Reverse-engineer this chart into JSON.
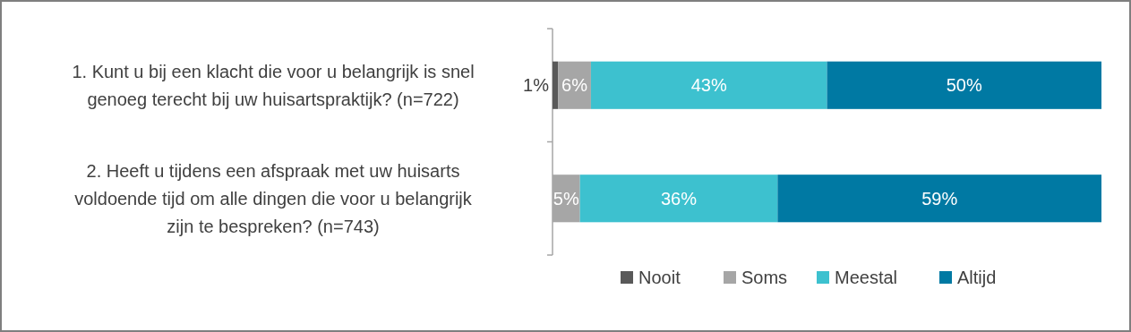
{
  "chart_data": {
    "type": "bar",
    "orientation": "horizontal",
    "stacked": true,
    "categories": [
      "1. Kunt u bij een klacht die voor u belangrijk is snel genoeg terecht bij uw huisartspraktijk? (n=722)",
      "2. Heeft u tijdens een afspraak met uw huisarts voldoende tijd om alle dingen die voor u belangrijk zijn te bespreken? (n=743)"
    ],
    "series": [
      {
        "name": "Nooit",
        "color": "#595959",
        "values": [
          1,
          0
        ],
        "value_labels": [
          "1%",
          null
        ]
      },
      {
        "name": "Soms",
        "color": "#a6a6a6",
        "values": [
          6,
          5
        ],
        "value_labels": [
          "6%",
          "5%"
        ]
      },
      {
        "name": "Meestal",
        "color": "#3dc1cf",
        "values": [
          43,
          36
        ],
        "value_labels": [
          "43%",
          "36%"
        ]
      },
      {
        "name": "Altijd",
        "color": "#0079a3",
        "values": [
          50,
          59
        ],
        "value_labels": [
          "50%",
          "59%"
        ]
      }
    ],
    "xlim": [
      0,
      100
    ],
    "tick_labels": "y",
    "legend": "bottom right"
  }
}
